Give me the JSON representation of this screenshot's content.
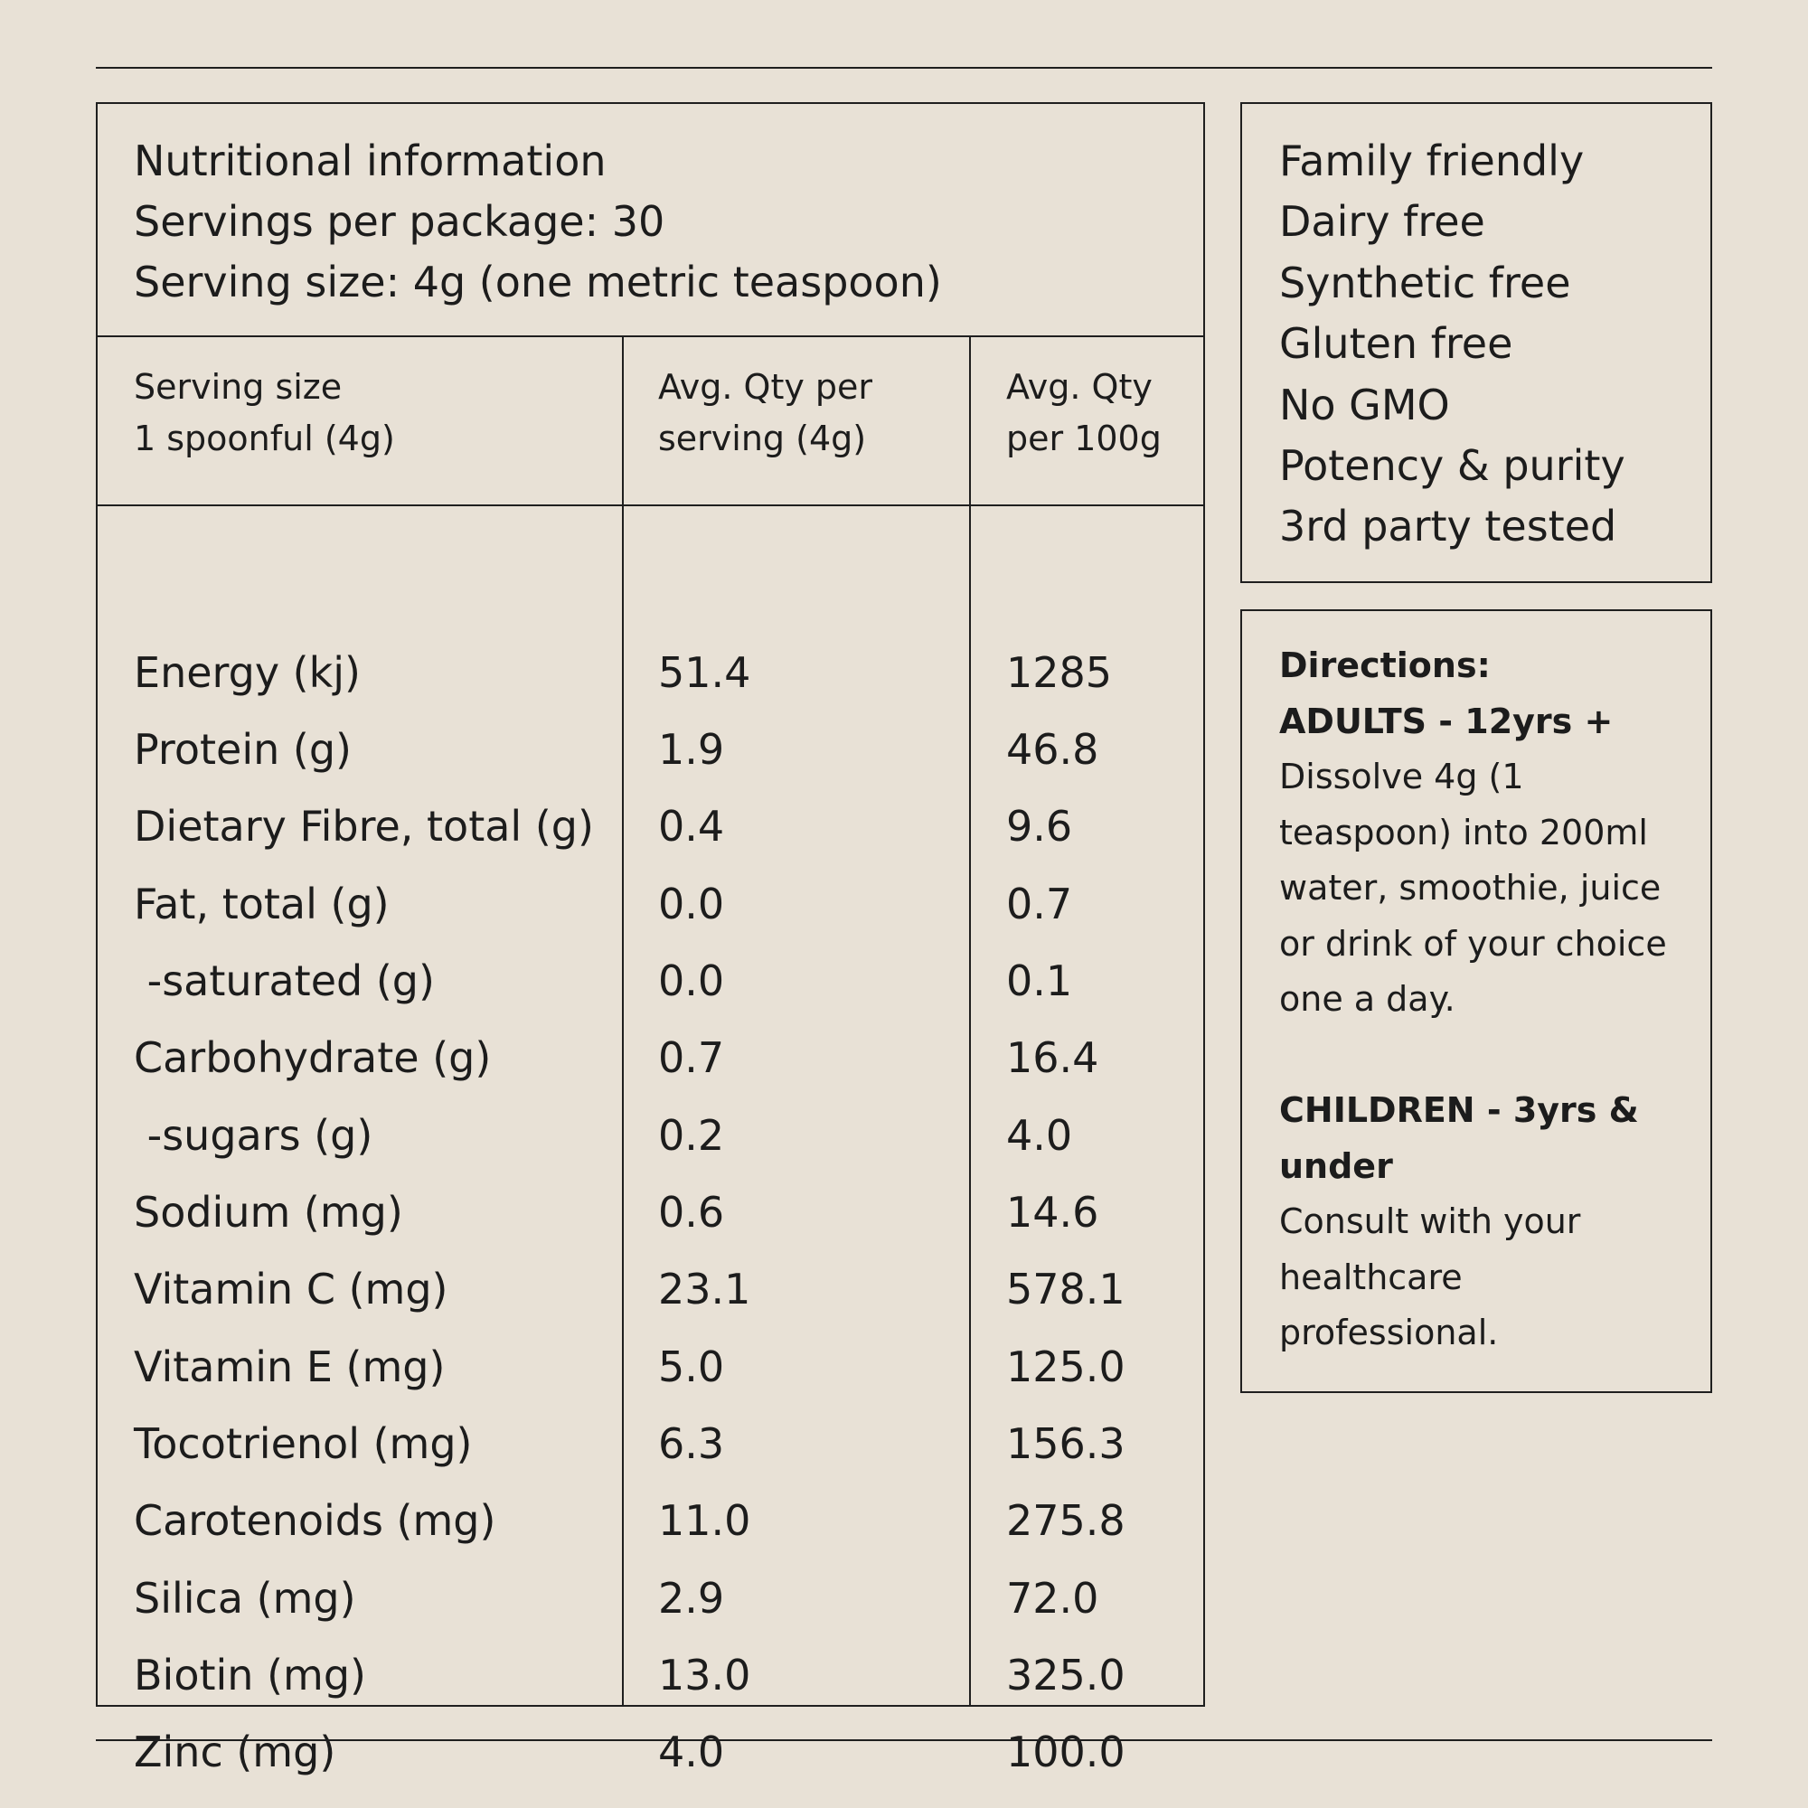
{
  "header": {
    "title": "Nutritional information",
    "servings_per_package": "Servings per package: 30",
    "serving_size": "Serving size: 4g (one metric teaspoon)"
  },
  "columns": {
    "col1": [
      "Serving size",
      "1 spoonful (4g)"
    ],
    "col2": [
      "Avg. Qty per",
      "serving (4g)"
    ],
    "col3": [
      "Avg. Qty",
      "per 100g"
    ]
  },
  "rows": [
    {
      "name": "Energy (kj)",
      "per_serving": "51.4",
      "per_100g": "1285"
    },
    {
      "name": "Protein (g)",
      "per_serving": "1.9",
      "per_100g": "46.8"
    },
    {
      "name": "Dietary Fibre, total (g)",
      "per_serving": "0.4",
      "per_100g": "9.6"
    },
    {
      "name": "Fat, total (g)",
      "per_serving": "0.0",
      "per_100g": "0.7"
    },
    {
      "name": " -saturated (g)",
      "per_serving": "0.0",
      "per_100g": "0.1"
    },
    {
      "name": "Carbohydrate (g)",
      "per_serving": "0.7",
      "per_100g": "16.4"
    },
    {
      "name": " -sugars (g)",
      "per_serving": "0.2",
      "per_100g": "4.0"
    },
    {
      "name": "Sodium (mg)",
      "per_serving": "0.6",
      "per_100g": "14.6"
    },
    {
      "name": "Vitamin C (mg)",
      "per_serving": "23.1",
      "per_100g": "578.1"
    },
    {
      "name": "Vitamin E (mg)",
      "per_serving": "5.0",
      "per_100g": "125.0"
    },
    {
      "name": "Tocotrienol (mg)",
      "per_serving": "6.3",
      "per_100g": "156.3"
    },
    {
      "name": "Carotenoids (mg)",
      "per_serving": "11.0",
      "per_100g": "275.8"
    },
    {
      "name": "Silica (mg)",
      "per_serving": "2.9",
      "per_100g": "72.0"
    },
    {
      "name": "Biotin (mg)",
      "per_serving": "13.0",
      "per_100g": "325.0"
    },
    {
      "name": "Zinc (mg)",
      "per_serving": "4.0",
      "per_100g": "100.0"
    }
  ],
  "badges": [
    "Family friendly",
    "Dairy free",
    "Synthetic free",
    "Gluten free",
    "No GMO",
    "Potency & purity",
    "3rd party tested"
  ],
  "directions": {
    "title": "Directions:",
    "adults_heading": "ADULTS - 12yrs +",
    "adults_text": [
      "Dissolve 4g (1",
      "teaspoon) into 200ml",
      "water, smoothie, juice",
      "or drink of your choice",
      "one a day."
    ],
    "children_heading": [
      "CHILDREN - 3yrs &",
      "under"
    ],
    "children_text": [
      "Consult with your",
      "healthcare",
      "professional."
    ]
  },
  "colors": {
    "background": "#e8e1d6",
    "ink": "#1c1c1c",
    "rule": "#1f1f1f"
  }
}
